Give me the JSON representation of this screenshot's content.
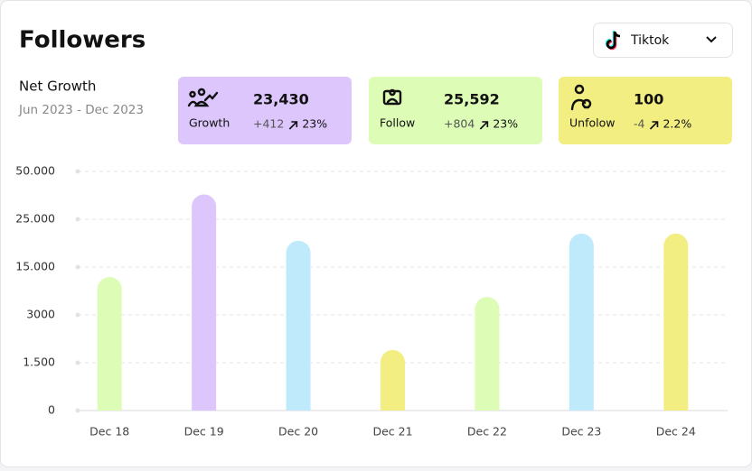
{
  "header": {
    "title": "Followers",
    "dropdown": "Tiktok"
  },
  "summary": {
    "title": "Net Growth",
    "period": "Jun 2023 - Dec 2023"
  },
  "cards": [
    {
      "label": "Growth",
      "value": "23,430",
      "change": "+412",
      "percent": "23%",
      "color": "#dcc6fc"
    },
    {
      "label": "Follow",
      "value": "25,592",
      "change": "+804",
      "percent": "23%",
      "color": "#ddfcb6"
    },
    {
      "label": "Unfolow",
      "value": "100",
      "change": "-4",
      "percent": "2.2%",
      "color": "#f2ee82"
    }
  ],
  "chart_data": {
    "type": "bar",
    "categories": [
      "Dec 18",
      "Dec 19",
      "Dec 20",
      "Dec 21",
      "Dec 22",
      "Dec 23",
      "Dec 24"
    ],
    "values": [
      12500,
      38000,
      20500,
      1900,
      7500,
      22000,
      22000
    ],
    "colors": [
      "#ddfcb6",
      "#dcc6fc",
      "#bfeafc",
      "#f2ee82",
      "#ddfcb6",
      "#bfeafc",
      "#f2ee82"
    ],
    "ylim": [
      0,
      50000
    ],
    "yticks": [
      0,
      {
        "value": 1500,
        "label": "1.500"
      },
      3000,
      {
        "value": 15000,
        "label": "15.000"
      },
      {
        "value": 25000,
        "label": "25.000"
      },
      {
        "value": 50000,
        "label": "50.000"
      }
    ],
    "grid": true
  }
}
